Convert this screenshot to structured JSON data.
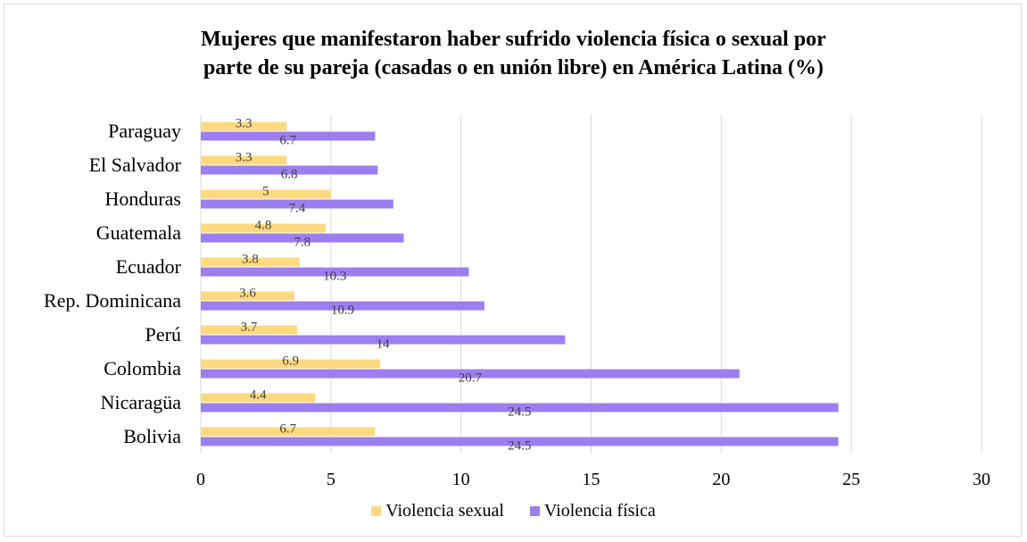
{
  "chart_data": {
    "type": "bar",
    "orientation": "horizontal",
    "title": "Mujeres que manifestaron haber sufrido violencia física o sexual por parte de su pareja (casadas o en unión libre) en América Latina (%)",
    "title_lines": [
      "Mujeres que manifestaron haber sufrido violencia física o sexual por",
      "parte de su pareja (casadas o en unión libre) en América Latina (%)"
    ],
    "categories": [
      "Paraguay",
      "El Salvador ",
      "Honduras",
      "Guatemala",
      "Ecuador",
      "Rep. Dominicana",
      "Perú",
      "Colombia",
      "Nicaragüa",
      "Bolivia"
    ],
    "series": [
      {
        "name": "Violencia sexual",
        "color": "#ffd97f",
        "values": [
          3.3,
          3.3,
          5,
          4.8,
          3.8,
          3.6,
          3.7,
          6.9,
          4.4,
          6.7
        ]
      },
      {
        "name": "Violencia física",
        "color": "#9b7ff0",
        "values": [
          6.7,
          6.8,
          7.4,
          7.8,
          10.3,
          10.9,
          14,
          20.7,
          24.5,
          24.5
        ]
      }
    ],
    "xlim": [
      0,
      30
    ],
    "xticks": [
      0,
      5,
      10,
      15,
      20,
      25,
      30
    ],
    "xlabel": "",
    "ylabel": "",
    "grid": true,
    "legend_position": "bottom"
  }
}
